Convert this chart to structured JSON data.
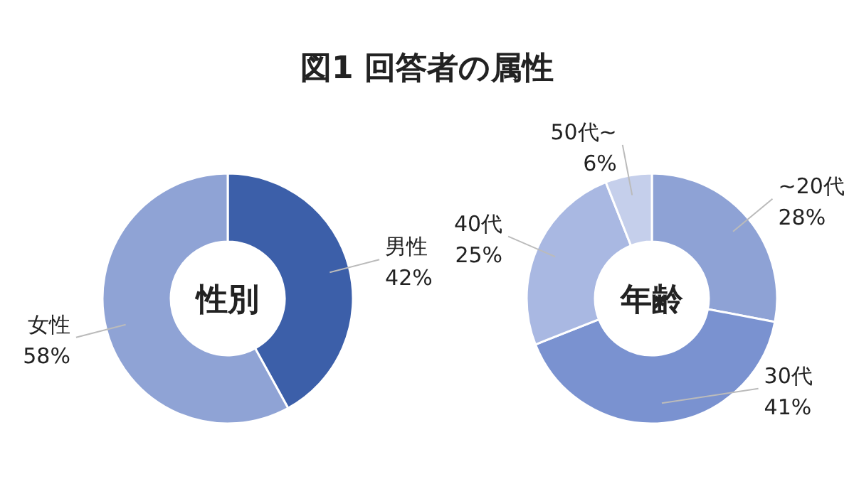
{
  "chart_data": [
    {
      "type": "donut",
      "title": "性別",
      "annotations": [
        "図1 回答者の属性"
      ],
      "categories": [
        "男性",
        "女性"
      ],
      "values": [
        42,
        58
      ],
      "value_labels": [
        "42%",
        "58%"
      ],
      "colors": [
        "#3c5fa9",
        "#8fa3d5"
      ]
    },
    {
      "type": "donut",
      "title": "年齢",
      "categories": [
        "~20代",
        "30代",
        "40代",
        "50代~"
      ],
      "values": [
        28,
        41,
        25,
        6
      ],
      "value_labels": [
        "28%",
        "41%",
        "25%",
        "6%"
      ],
      "colors": [
        "#8ea2d5",
        "#7a92d0",
        "#a9b8e2",
        "#c5cfeb"
      ]
    }
  ]
}
